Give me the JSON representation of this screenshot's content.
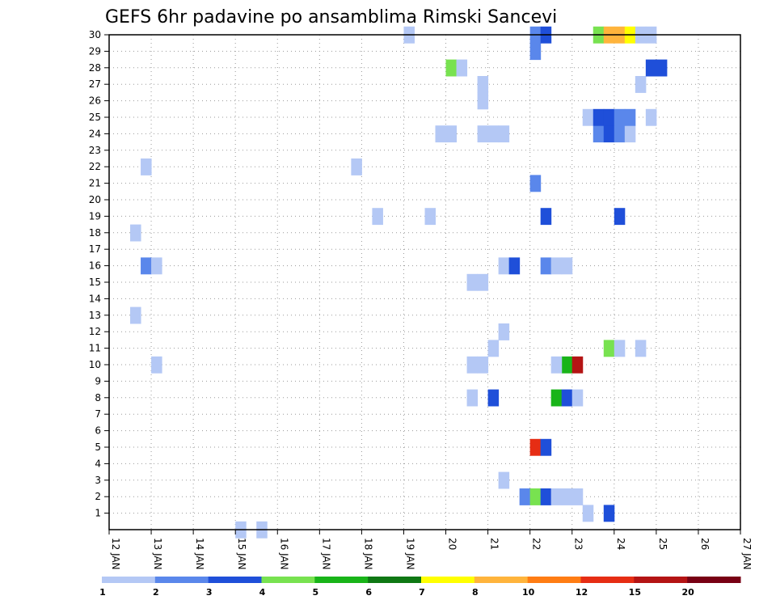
{
  "chart_data": {
    "type": "heatmap",
    "title": "GEFS 6hr padavine po ansamblima Rimski Sancevi",
    "x_tick_labels": [
      "12 JAN",
      "13 JAN",
      "14 JAN",
      "15 JAN",
      "16 JAN",
      "17 JAN",
      "18 JAN",
      "19 JAN",
      "20",
      "21",
      "22",
      "23",
      "24",
      "25",
      "26",
      "27 JAN"
    ],
    "y_tick_labels": [
      "1",
      "2",
      "3",
      "4",
      "5",
      "6",
      "7",
      "8",
      "9",
      "10",
      "11",
      "12",
      "13",
      "14",
      "15",
      "16",
      "17",
      "18",
      "19",
      "20",
      "21",
      "22",
      "23",
      "24",
      "25",
      "26",
      "27",
      "28",
      "29",
      "30"
    ],
    "x_start_day": 12,
    "x_end_day": 27,
    "steps_per_day": 4,
    "y_range": [
      0,
      30
    ],
    "grid": true,
    "legend_boundaries": [
      "1",
      "2",
      "3",
      "4",
      "5",
      "6",
      "7",
      "8",
      "10",
      "12",
      "15",
      "20"
    ],
    "colors": {
      "c1": "#b4c8f5",
      "c2": "#5a87eb",
      "c3": "#1f4fd9",
      "c4": "#78e250",
      "c5": "#19b419",
      "c6": "#0f7814",
      "c7": "#ffff00",
      "c8": "#ffb43c",
      "c10": "#ff7d14",
      "c12": "#e62d14",
      "c15": "#b41414",
      "c20": "#780014"
    },
    "legend_order": [
      "c1",
      "c2",
      "c3",
      "c4",
      "c5",
      "c6",
      "c7",
      "c8",
      "c10",
      "c12",
      "c15",
      "c20"
    ],
    "cells": [
      {
        "m": 1,
        "t": 45,
        "c": "c1"
      },
      {
        "m": 1,
        "t": 47,
        "c": "c3"
      },
      {
        "m": 2,
        "t": 39,
        "c": "c2"
      },
      {
        "m": 2,
        "t": 40,
        "c": "c4"
      },
      {
        "m": 2,
        "t": 41,
        "c": "c3"
      },
      {
        "m": 2,
        "t": 42,
        "c": "c1"
      },
      {
        "m": 2,
        "t": 43,
        "c": "c1"
      },
      {
        "m": 2,
        "t": 44,
        "c": "c1"
      },
      {
        "m": 3,
        "t": 37,
        "c": "c1"
      },
      {
        "m": 5,
        "t": 40,
        "c": "c12"
      },
      {
        "m": 5,
        "t": 41,
        "c": "c3"
      },
      {
        "m": 8,
        "t": 34,
        "c": "c1"
      },
      {
        "m": 8,
        "t": 36,
        "c": "c3"
      },
      {
        "m": 8,
        "t": 42,
        "c": "c5"
      },
      {
        "m": 8,
        "t": 43,
        "c": "c3"
      },
      {
        "m": 8,
        "t": 44,
        "c": "c1"
      },
      {
        "m": 10,
        "t": 4,
        "c": "c1"
      },
      {
        "m": 10,
        "t": 34,
        "c": "c1"
      },
      {
        "m": 10,
        "t": 35,
        "c": "c1"
      },
      {
        "m": 10,
        "t": 43,
        "c": "c5"
      },
      {
        "m": 10,
        "t": 44,
        "c": "c15"
      },
      {
        "m": 10,
        "t": 42,
        "c": "c1"
      },
      {
        "m": 11,
        "t": 36,
        "c": "c1"
      },
      {
        "m": 11,
        "t": 47,
        "c": "c4"
      },
      {
        "m": 11,
        "t": 48,
        "c": "c1"
      },
      {
        "m": 11,
        "t": 50,
        "c": "c1"
      },
      {
        "m": 12,
        "t": 37,
        "c": "c1"
      },
      {
        "m": 13,
        "t": 2,
        "c": "c1"
      },
      {
        "m": 15,
        "t": 34,
        "c": "c1"
      },
      {
        "m": 15,
        "t": 35,
        "c": "c1"
      },
      {
        "m": 16,
        "t": 3,
        "c": "c2"
      },
      {
        "m": 16,
        "t": 4,
        "c": "c1"
      },
      {
        "m": 16,
        "t": 37,
        "c": "c1"
      },
      {
        "m": 16,
        "t": 38,
        "c": "c3"
      },
      {
        "m": 16,
        "t": 41,
        "c": "c2"
      },
      {
        "m": 16,
        "t": 42,
        "c": "c1"
      },
      {
        "m": 16,
        "t": 43,
        "c": "c1"
      },
      {
        "m": 18,
        "t": 2,
        "c": "c1"
      },
      {
        "m": 19,
        "t": 25,
        "c": "c1"
      },
      {
        "m": 19,
        "t": 30,
        "c": "c1"
      },
      {
        "m": 19,
        "t": 41,
        "c": "c3"
      },
      {
        "m": 19,
        "t": 48,
        "c": "c3"
      },
      {
        "m": 21,
        "t": 40,
        "c": "c2"
      },
      {
        "m": 22,
        "t": 3,
        "c": "c1"
      },
      {
        "m": 22,
        "t": 23,
        "c": "c1"
      },
      {
        "m": 24,
        "t": 31,
        "c": "c1"
      },
      {
        "m": 24,
        "t": 32,
        "c": "c1"
      },
      {
        "m": 24,
        "t": 35,
        "c": "c1"
      },
      {
        "m": 24,
        "t": 36,
        "c": "c1"
      },
      {
        "m": 24,
        "t": 37,
        "c": "c1"
      },
      {
        "m": 24,
        "t": 46,
        "c": "c2"
      },
      {
        "m": 24,
        "t": 47,
        "c": "c3"
      },
      {
        "m": 24,
        "t": 48,
        "c": "c2"
      },
      {
        "m": 24,
        "t": 49,
        "c": "c1"
      },
      {
        "m": 25,
        "t": 45,
        "c": "c1"
      },
      {
        "m": 25,
        "t": 46,
        "c": "c3"
      },
      {
        "m": 25,
        "t": 47,
        "c": "c3"
      },
      {
        "m": 25,
        "t": 48,
        "c": "c2"
      },
      {
        "m": 25,
        "t": 49,
        "c": "c2"
      },
      {
        "m": 25,
        "t": 51,
        "c": "c1"
      },
      {
        "m": 26,
        "t": 35,
        "c": "c1"
      },
      {
        "m": 27,
        "t": 35,
        "c": "c1"
      },
      {
        "m": 27,
        "t": 50,
        "c": "c1"
      },
      {
        "m": 28,
        "t": 32,
        "c": "c4"
      },
      {
        "m": 28,
        "t": 33,
        "c": "c1"
      },
      {
        "m": 28,
        "t": 51,
        "c": "c3"
      },
      {
        "m": 28,
        "t": 52,
        "c": "c3"
      },
      {
        "m": 29,
        "t": 40,
        "c": "c2"
      },
      {
        "m": 30,
        "t": 28,
        "c": "c1"
      },
      {
        "m": 30,
        "t": 40,
        "c": "c2"
      },
      {
        "m": 30,
        "t": 41,
        "c": "c3"
      },
      {
        "m": 30,
        "t": 46,
        "c": "c4"
      },
      {
        "m": 30,
        "t": 47,
        "c": "c8"
      },
      {
        "m": 30,
        "t": 48,
        "c": "c8"
      },
      {
        "m": 30,
        "t": 49,
        "c": "c7"
      },
      {
        "m": 30,
        "t": 50,
        "c": "c1"
      },
      {
        "m": 30,
        "t": 51,
        "c": "c1"
      },
      {
        "m": 0,
        "t": 12,
        "c": "c1"
      },
      {
        "m": 0,
        "t": 14,
        "c": "c1"
      }
    ]
  }
}
